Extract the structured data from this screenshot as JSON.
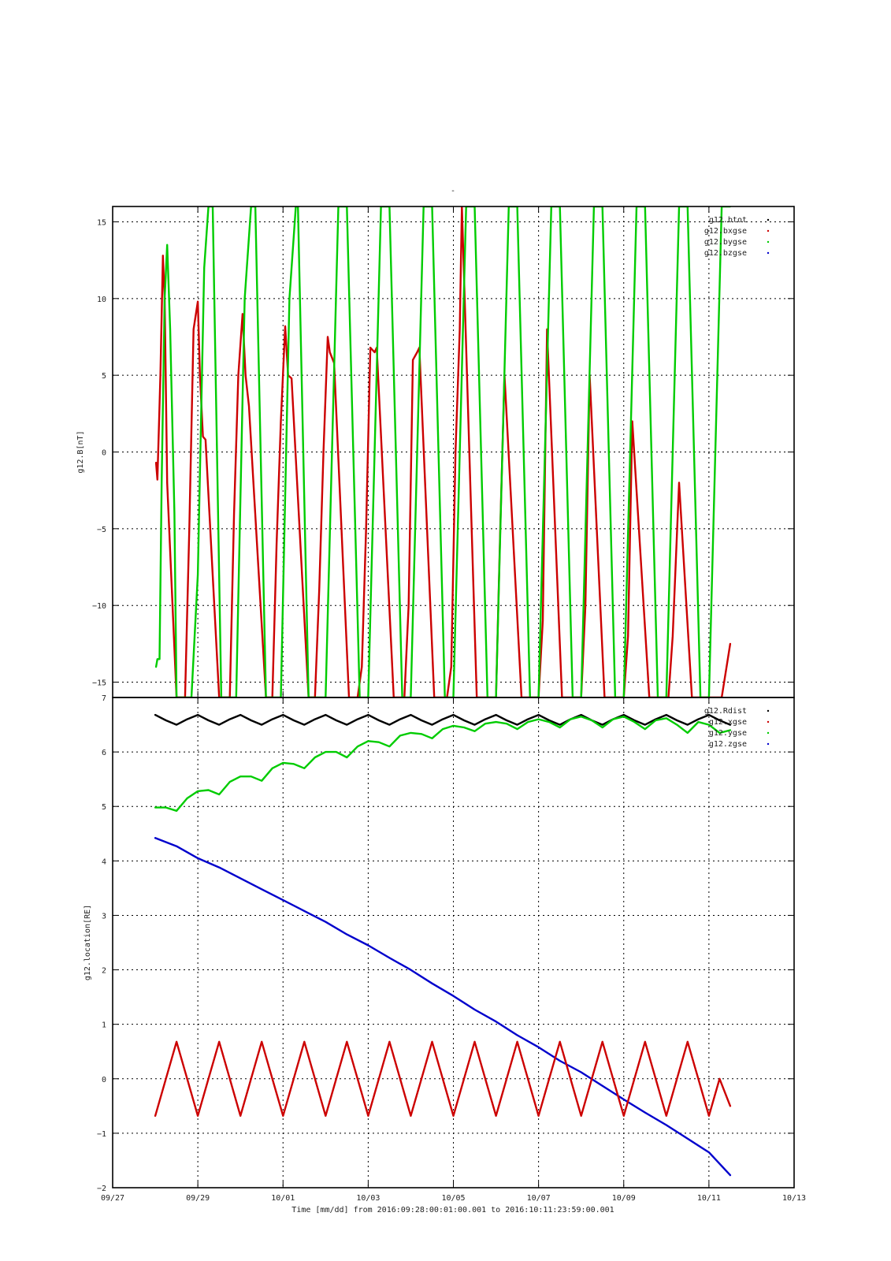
{
  "figure": {
    "title": "-",
    "xlabel": "Time [mm/dd]  from 2016:09:28:00:01:00.001  to  2016:10:11:23:59:00.001"
  },
  "colors": {
    "brot": "#000000",
    "bxgse": "#cc0000",
    "bygse": "#00cc00",
    "bzgse": "#0000cc",
    "Rdist": "#000000",
    "xgse": "#cc0000",
    "ygse": "#00cc00",
    "zgse": "#0000cc"
  },
  "chart_data": [
    {
      "type": "line",
      "ylabel": "g12.B[nT]",
      "xlim": [
        0,
        16
      ],
      "ylim": [
        -16,
        16
      ],
      "x_tick_values": [
        0,
        2,
        4,
        6,
        8,
        10,
        12,
        14,
        16
      ],
      "x_tick_labels": [
        "09/27",
        "09/29",
        "10/01",
        "10/03",
        "10/05",
        "10/07",
        "10/09",
        "10/11",
        "10/13"
      ],
      "y_ticks": [
        -15,
        -10,
        -5,
        0,
        5,
        10,
        15
      ],
      "grid": true,
      "legend_position": "top-right",
      "legend": [
        "g12.btot",
        "g12.bxgse",
        "g12.bygse",
        "g12.bzgse"
      ],
      "series": [
        {
          "name": "g12.bxgse",
          "color_key": "bxgse",
          "x": [
            1.02,
            1.05,
            1.12,
            1.18,
            1.22,
            1.28,
            1.5,
            1.7,
            1.8,
            1.9,
            2.0,
            2.05,
            2.12,
            2.18,
            2.5,
            2.75,
            2.85,
            2.95,
            3.05,
            3.12,
            3.2,
            3.6,
            3.75,
            3.85,
            3.95,
            4.05,
            4.12,
            4.2,
            4.6,
            4.75,
            4.85,
            4.95,
            5.05,
            5.1,
            5.2,
            5.55,
            5.75,
            5.85,
            5.95,
            6.05,
            6.15,
            6.2,
            6.6,
            6.75,
            6.85,
            6.95,
            7.05,
            7.15,
            7.2,
            7.55,
            7.75,
            7.85,
            7.95,
            8.05,
            8.15,
            8.2,
            8.55,
            8.75,
            8.9,
            9.0,
            9.1,
            9.2,
            9.6,
            9.8,
            9.9,
            10.0,
            10.1,
            10.2,
            10.55,
            10.8,
            10.9,
            11.0,
            11.1,
            11.2,
            11.55,
            11.8,
            11.9,
            12.0,
            12.1,
            12.2,
            12.6,
            12.85,
            12.95,
            13.05,
            13.15,
            13.3,
            13.6,
            13.85,
            13.95,
            14.05,
            14.15,
            14.3,
            14.5
          ],
          "y": [
            -0.7,
            -1.8,
            5,
            12.8,
            10,
            -2,
            -16,
            -16,
            -5,
            8,
            9.8,
            5,
            1,
            0.8,
            -16,
            -16,
            -4,
            5,
            9,
            5,
            3,
            -16,
            -16,
            -6,
            2,
            8.2,
            5,
            4.8,
            -16,
            -16,
            -9,
            0,
            7.5,
            6.5,
            5.8,
            -16,
            -16,
            -14,
            -5,
            6.8,
            6.5,
            6.8,
            -16,
            -16,
            -16,
            -10,
            6,
            6.5,
            6.8,
            -16,
            -16,
            -16,
            -14,
            0,
            8,
            16,
            -16,
            -16,
            -16,
            -16,
            -5,
            5,
            -16,
            -16,
            -16,
            -16,
            -11,
            8,
            -16,
            -16,
            -16,
            -16,
            -10,
            5,
            -16,
            -16,
            -16,
            -16,
            -12,
            2,
            -16,
            -16,
            -16,
            -16,
            -12,
            -2,
            -16,
            -16,
            -16,
            -16,
            -16,
            -16,
            -12.5
          ]
        },
        {
          "name": "g12.bygse",
          "color_key": "bygse",
          "x": [
            1.02,
            1.05,
            1.1,
            1.15,
            1.22,
            1.28,
            1.35,
            1.45,
            1.5,
            1.8,
            1.85,
            2.0,
            2.15,
            2.25,
            2.35,
            2.55,
            2.75,
            2.9,
            3.1,
            3.25,
            3.35,
            3.6,
            3.75,
            3.95,
            4.15,
            4.3,
            4.35,
            4.6,
            4.8,
            5.0,
            5.3,
            5.5,
            5.8,
            6.0,
            6.3,
            6.5,
            6.8,
            7.0,
            7.3,
            7.5,
            7.8,
            8.0,
            8.3,
            8.5,
            8.8,
            9.0,
            9.3,
            9.5,
            9.8,
            10.0,
            10.3,
            10.5,
            10.8,
            11.0,
            11.3,
            11.5,
            11.8,
            12.0,
            12.3,
            12.5,
            12.8,
            13.0,
            13.3,
            13.5,
            13.8,
            14.0,
            14.3,
            14.5
          ],
          "y": [
            -14,
            -13.5,
            -13.5,
            -2,
            10,
            13.5,
            8,
            -4,
            -16,
            -16,
            -16,
            -8,
            12,
            16,
            16,
            -16,
            -16,
            -16,
            10,
            16,
            16,
            -16,
            -16,
            -16,
            10,
            16,
            16,
            -16,
            -16,
            -16,
            16,
            16,
            -16,
            -16,
            16,
            16,
            -16,
            -16,
            16,
            16,
            -16,
            -16,
            16,
            16,
            -16,
            -16,
            16,
            16,
            -16,
            -16,
            16,
            16,
            -16,
            -16,
            16,
            16,
            -16,
            -16,
            16,
            16,
            -16,
            -16,
            16,
            16,
            -16,
            -16,
            16,
            16
          ]
        }
      ]
    },
    {
      "type": "line",
      "ylabel": "g12.location[RE]",
      "xlim": [
        0,
        16
      ],
      "ylim": [
        -2,
        7
      ],
      "x_tick_values": [
        0,
        2,
        4,
        6,
        8,
        10,
        12,
        14,
        16
      ],
      "x_tick_labels": [
        "09/27",
        "09/29",
        "10/01",
        "10/03",
        "10/05",
        "10/07",
        "10/09",
        "10/11",
        "10/13"
      ],
      "y_ticks": [
        -2,
        -1,
        0,
        1,
        2,
        3,
        4,
        5,
        6,
        7
      ],
      "grid": true,
      "legend_position": "top-right",
      "legend": [
        "g12.Rdist",
        "g12.xgse",
        "g12.ygse",
        "g12.zgse"
      ],
      "series": [
        {
          "name": "g12.Rdist",
          "color_key": "Rdist",
          "x": [
            1.0,
            1.25,
            1.5,
            1.75,
            2.0,
            2.25,
            2.5,
            2.75,
            3.0,
            3.25,
            3.5,
            3.75,
            4.0,
            4.25,
            4.5,
            4.75,
            5.0,
            5.25,
            5.5,
            5.75,
            6.0,
            6.25,
            6.5,
            6.75,
            7.0,
            7.25,
            7.5,
            7.75,
            8.0,
            8.25,
            8.5,
            8.75,
            9.0,
            9.25,
            9.5,
            9.75,
            10.0,
            10.25,
            10.5,
            10.75,
            11.0,
            11.25,
            11.5,
            11.75,
            12.0,
            12.25,
            12.5,
            12.75,
            13.0,
            13.25,
            13.5,
            13.75,
            14.0,
            14.25,
            14.5
          ],
          "y": [
            6.68,
            6.58,
            6.5,
            6.6,
            6.68,
            6.58,
            6.5,
            6.6,
            6.68,
            6.58,
            6.5,
            6.6,
            6.68,
            6.58,
            6.5,
            6.6,
            6.68,
            6.58,
            6.5,
            6.6,
            6.68,
            6.58,
            6.5,
            6.6,
            6.68,
            6.58,
            6.5,
            6.6,
            6.68,
            6.58,
            6.5,
            6.6,
            6.68,
            6.58,
            6.5,
            6.6,
            6.68,
            6.58,
            6.5,
            6.6,
            6.68,
            6.58,
            6.5,
            6.6,
            6.68,
            6.58,
            6.5,
            6.6,
            6.68,
            6.58,
            6.5,
            6.6,
            6.68,
            6.58,
            6.5
          ]
        },
        {
          "name": "g12.ygse",
          "color_key": "ygse",
          "x": [
            1.0,
            1.25,
            1.5,
            1.75,
            2.0,
            2.25,
            2.5,
            2.75,
            3.0,
            3.25,
            3.5,
            3.75,
            4.0,
            4.25,
            4.5,
            4.75,
            5.0,
            5.25,
            5.5,
            5.75,
            6.0,
            6.25,
            6.5,
            6.75,
            7.0,
            7.25,
            7.5,
            7.75,
            8.0,
            8.25,
            8.5,
            8.75,
            9.0,
            9.25,
            9.5,
            9.75,
            10.0,
            10.25,
            10.5,
            10.75,
            11.0,
            11.25,
            11.5,
            11.75,
            12.0,
            12.25,
            12.5,
            12.75,
            13.0,
            13.25,
            13.5,
            13.75,
            14.0,
            14.25,
            14.5
          ],
          "y": [
            4.98,
            4.98,
            4.92,
            5.15,
            5.28,
            5.3,
            5.22,
            5.45,
            5.55,
            5.55,
            5.47,
            5.7,
            5.8,
            5.78,
            5.7,
            5.9,
            6.0,
            6.0,
            5.9,
            6.1,
            6.2,
            6.18,
            6.1,
            6.3,
            6.35,
            6.33,
            6.25,
            6.42,
            6.48,
            6.45,
            6.38,
            6.52,
            6.55,
            6.52,
            6.42,
            6.55,
            6.6,
            6.55,
            6.45,
            6.6,
            6.65,
            6.58,
            6.45,
            6.6,
            6.65,
            6.55,
            6.42,
            6.58,
            6.62,
            6.5,
            6.35,
            6.55,
            6.5,
            6.35,
            6.4
          ]
        },
        {
          "name": "g12.zgse",
          "color_key": "zgse",
          "x": [
            1.0,
            1.5,
            2.0,
            2.5,
            3.0,
            3.5,
            4.0,
            4.5,
            5.0,
            5.5,
            6.0,
            6.5,
            7.0,
            7.5,
            8.0,
            8.5,
            9.0,
            9.5,
            10.0,
            10.5,
            11.0,
            11.5,
            12.0,
            12.5,
            13.0,
            13.5,
            14.0,
            14.5
          ],
          "y": [
            4.42,
            4.27,
            4.05,
            3.88,
            3.68,
            3.48,
            3.28,
            3.08,
            2.88,
            2.65,
            2.45,
            2.22,
            2.0,
            1.75,
            1.52,
            1.27,
            1.05,
            0.8,
            0.58,
            0.33,
            0.12,
            -0.13,
            -0.38,
            -0.62,
            -0.85,
            -1.1,
            -1.35,
            -1.77
          ]
        },
        {
          "name": "g12.xgse",
          "color_key": "xgse",
          "x": [
            1.0,
            1.25,
            1.5,
            1.75,
            2.0,
            2.25,
            2.5,
            2.75,
            3.0,
            3.25,
            3.5,
            3.75,
            4.0,
            4.25,
            4.5,
            4.75,
            5.0,
            5.25,
            5.5,
            5.75,
            6.0,
            6.25,
            6.5,
            6.75,
            7.0,
            7.25,
            7.5,
            7.75,
            8.0,
            8.25,
            8.5,
            8.75,
            9.0,
            9.25,
            9.5,
            9.75,
            10.0,
            10.25,
            10.5,
            10.75,
            11.0,
            11.25,
            11.5,
            11.75,
            12.0,
            12.25,
            12.5,
            12.75,
            13.0,
            13.25,
            13.5,
            13.75,
            14.0,
            14.25,
            14.5
          ],
          "y": [
            -0.68,
            0.0,
            0.68,
            0.0,
            -0.68,
            0.0,
            0.68,
            0.0,
            -0.68,
            0.0,
            0.68,
            0.0,
            -0.68,
            0.0,
            0.68,
            0.0,
            -0.68,
            0.0,
            0.68,
            0.0,
            -0.68,
            0.0,
            0.68,
            0.0,
            -0.68,
            0.0,
            0.68,
            0.0,
            -0.68,
            0.0,
            0.68,
            0.0,
            -0.68,
            0.0,
            0.68,
            0.0,
            -0.68,
            0.0,
            0.68,
            0.0,
            -0.68,
            0.0,
            0.68,
            0.0,
            -0.68,
            0.0,
            0.68,
            0.0,
            -0.68,
            0.0,
            0.68,
            0.0,
            -0.68,
            0.0,
            -0.5
          ]
        }
      ]
    }
  ]
}
